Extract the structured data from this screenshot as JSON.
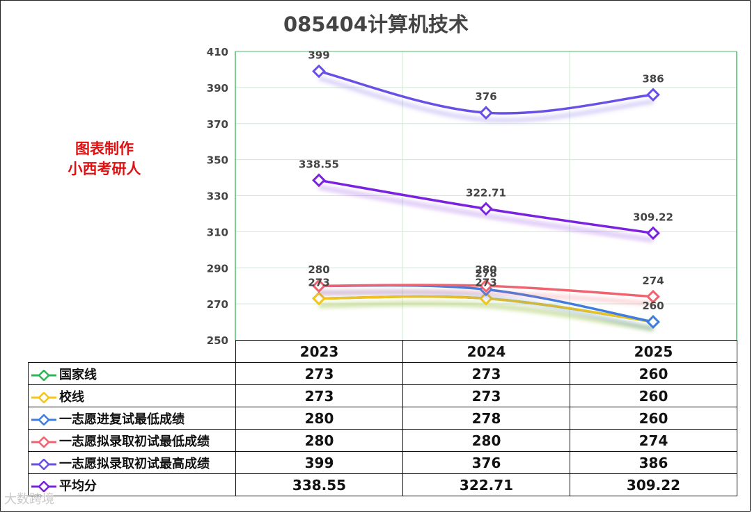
{
  "title": "085404计算机技术",
  "credit": [
    "图表制作",
    "小西考研人"
  ],
  "watermark": "大数跨境",
  "chart_data": {
    "type": "line",
    "categories": [
      "2023",
      "2024",
      "2025"
    ],
    "ylim": [
      250,
      410
    ],
    "yticks": [
      250,
      270,
      290,
      310,
      330,
      350,
      370,
      390,
      410
    ],
    "grid": true,
    "series": [
      {
        "name": "国家线",
        "values": [
          273,
          273,
          260
        ],
        "color": "#2fb55a",
        "labels": [
          "",
          "",
          ""
        ]
      },
      {
        "name": "校线",
        "values": [
          273,
          273,
          260
        ],
        "color": "#f5c518",
        "labels": [
          "273",
          "273",
          ""
        ]
      },
      {
        "name": "一志愿进复试最低成绩",
        "values": [
          280,
          278,
          260
        ],
        "color": "#3f7de0",
        "labels": [
          "",
          "278",
          "260"
        ]
      },
      {
        "name": "一志愿拟录取初试最低成绩",
        "values": [
          280,
          280,
          274
        ],
        "color": "#f0626e",
        "labels": [
          "280",
          "280",
          "274"
        ]
      },
      {
        "name": "一志愿拟录取初试最高成绩",
        "values": [
          399,
          376,
          386
        ],
        "color": "#6a4fe6",
        "labels": [
          "399",
          "376",
          "386"
        ]
      },
      {
        "name": "平均分",
        "values": [
          338.55,
          322.71,
          309.22
        ],
        "color": "#7a22e0",
        "labels": [
          "338.55",
          "322.71",
          "309.22"
        ]
      }
    ],
    "table": [
      [
        "273",
        "273",
        "260"
      ],
      [
        "273",
        "273",
        "260"
      ],
      [
        "280",
        "278",
        "260"
      ],
      [
        "280",
        "280",
        "274"
      ],
      [
        "399",
        "376",
        "386"
      ],
      [
        "338.55",
        "322.71",
        "309.22"
      ]
    ]
  }
}
